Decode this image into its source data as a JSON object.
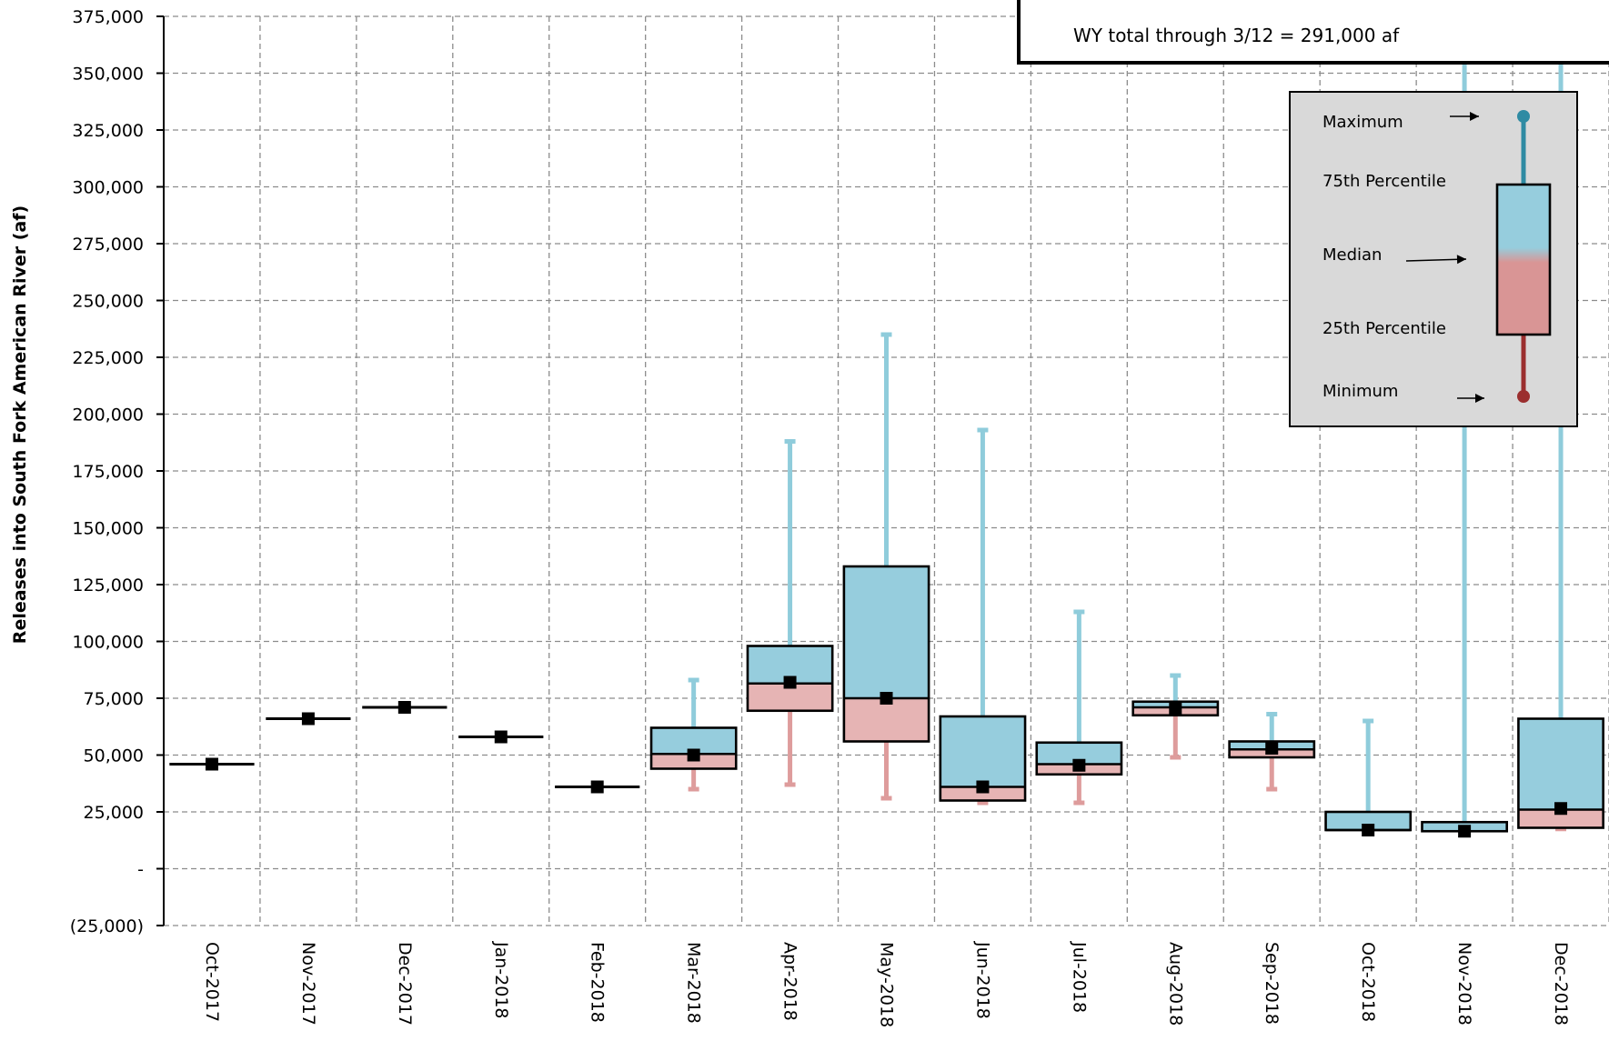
{
  "chart_data": {
    "type": "box",
    "ylabel": "Releases into South Fork American River (af)",
    "ylim": [
      -25000,
      375000
    ],
    "ytick_step": 25000,
    "ytick_labels": [
      "(25,000)",
      "-",
      "25,000",
      "50,000",
      "75,000",
      "100,000",
      "125,000",
      "150,000",
      "175,000",
      "200,000",
      "225,000",
      "250,000",
      "275,000",
      "300,000",
      "325,000",
      "350,000",
      "375,000"
    ],
    "grid": true,
    "categories": [
      "Oct-2017",
      "Nov-2017",
      "Dec-2017",
      "Jan-2018",
      "Feb-2018",
      "Mar-2018",
      "Apr-2018",
      "May-2018",
      "Jun-2018",
      "Jul-2018",
      "Aug-2018",
      "Sep-2018",
      "Oct-2018",
      "Nov-2018",
      "Dec-2018"
    ],
    "boxes": [
      {
        "min": null,
        "q1": null,
        "median": 46000,
        "q3": null,
        "max": null,
        "observed": 46000
      },
      {
        "min": null,
        "q1": null,
        "median": 66000,
        "q3": null,
        "max": null,
        "observed": 66000
      },
      {
        "min": null,
        "q1": null,
        "median": 71000,
        "q3": null,
        "max": null,
        "observed": 71000
      },
      {
        "min": null,
        "q1": null,
        "median": 58000,
        "q3": null,
        "max": null,
        "observed": 58000
      },
      {
        "min": null,
        "q1": null,
        "median": 36000,
        "q3": null,
        "max": null,
        "observed": 36000
      },
      {
        "min": 35000,
        "q1": 44000,
        "median": 50500,
        "q3": 62000,
        "max": 83000,
        "observed": 50000
      },
      {
        "min": 37000,
        "q1": 69500,
        "median": 81500,
        "q3": 98000,
        "max": 188000,
        "observed": 82000
      },
      {
        "min": 31000,
        "q1": 56000,
        "median": 75000,
        "q3": 133000,
        "max": 235000,
        "observed": 75000
      },
      {
        "min": 29000,
        "q1": 30000,
        "median": 36000,
        "q3": 67000,
        "max": 193000,
        "observed": 36000
      },
      {
        "min": 29000,
        "q1": 41500,
        "median": 46000,
        "q3": 55500,
        "max": 113000,
        "observed": 45500
      },
      {
        "min": 49000,
        "q1": 67500,
        "median": 71000,
        "q3": 73500,
        "max": 85000,
        "observed": 70500
      },
      {
        "min": 35000,
        "q1": 49000,
        "median": 52500,
        "q3": 56000,
        "max": 68000,
        "observed": 53000
      },
      {
        "min": 17000,
        "q1": 17000,
        "median": 17000,
        "q3": 25000,
        "max": 65000,
        "observed": 17000
      },
      {
        "min": 16500,
        "q1": 16500,
        "median": 16500,
        "q3": 20500,
        "max": 375000,
        "observed": 16500
      },
      {
        "min": 17500,
        "q1": 18000,
        "median": 26000,
        "q3": 66000,
        "max": 375000,
        "observed": 26500
      }
    ],
    "colors": {
      "upper": "#96CDDD",
      "lower": "#E6B4B4",
      "upper_whisker": "#8FCCDB",
      "lower_whisker": "#DE9C9C",
      "box_outline": "#000000",
      "observed_marker": "#000000",
      "grid": "#8C8C8C",
      "legend_bg": "#D9D9D9",
      "legend_max_dot": "#2F8BA3",
      "legend_min_dot": "#9B2F2F"
    },
    "annotation": "WY total through 3/12 = 291,000 af",
    "legend": {
      "placement": "top-right",
      "items": [
        "Maximum",
        "75th Percentile",
        "Median",
        "25th Percentile",
        "Minimum"
      ]
    }
  }
}
